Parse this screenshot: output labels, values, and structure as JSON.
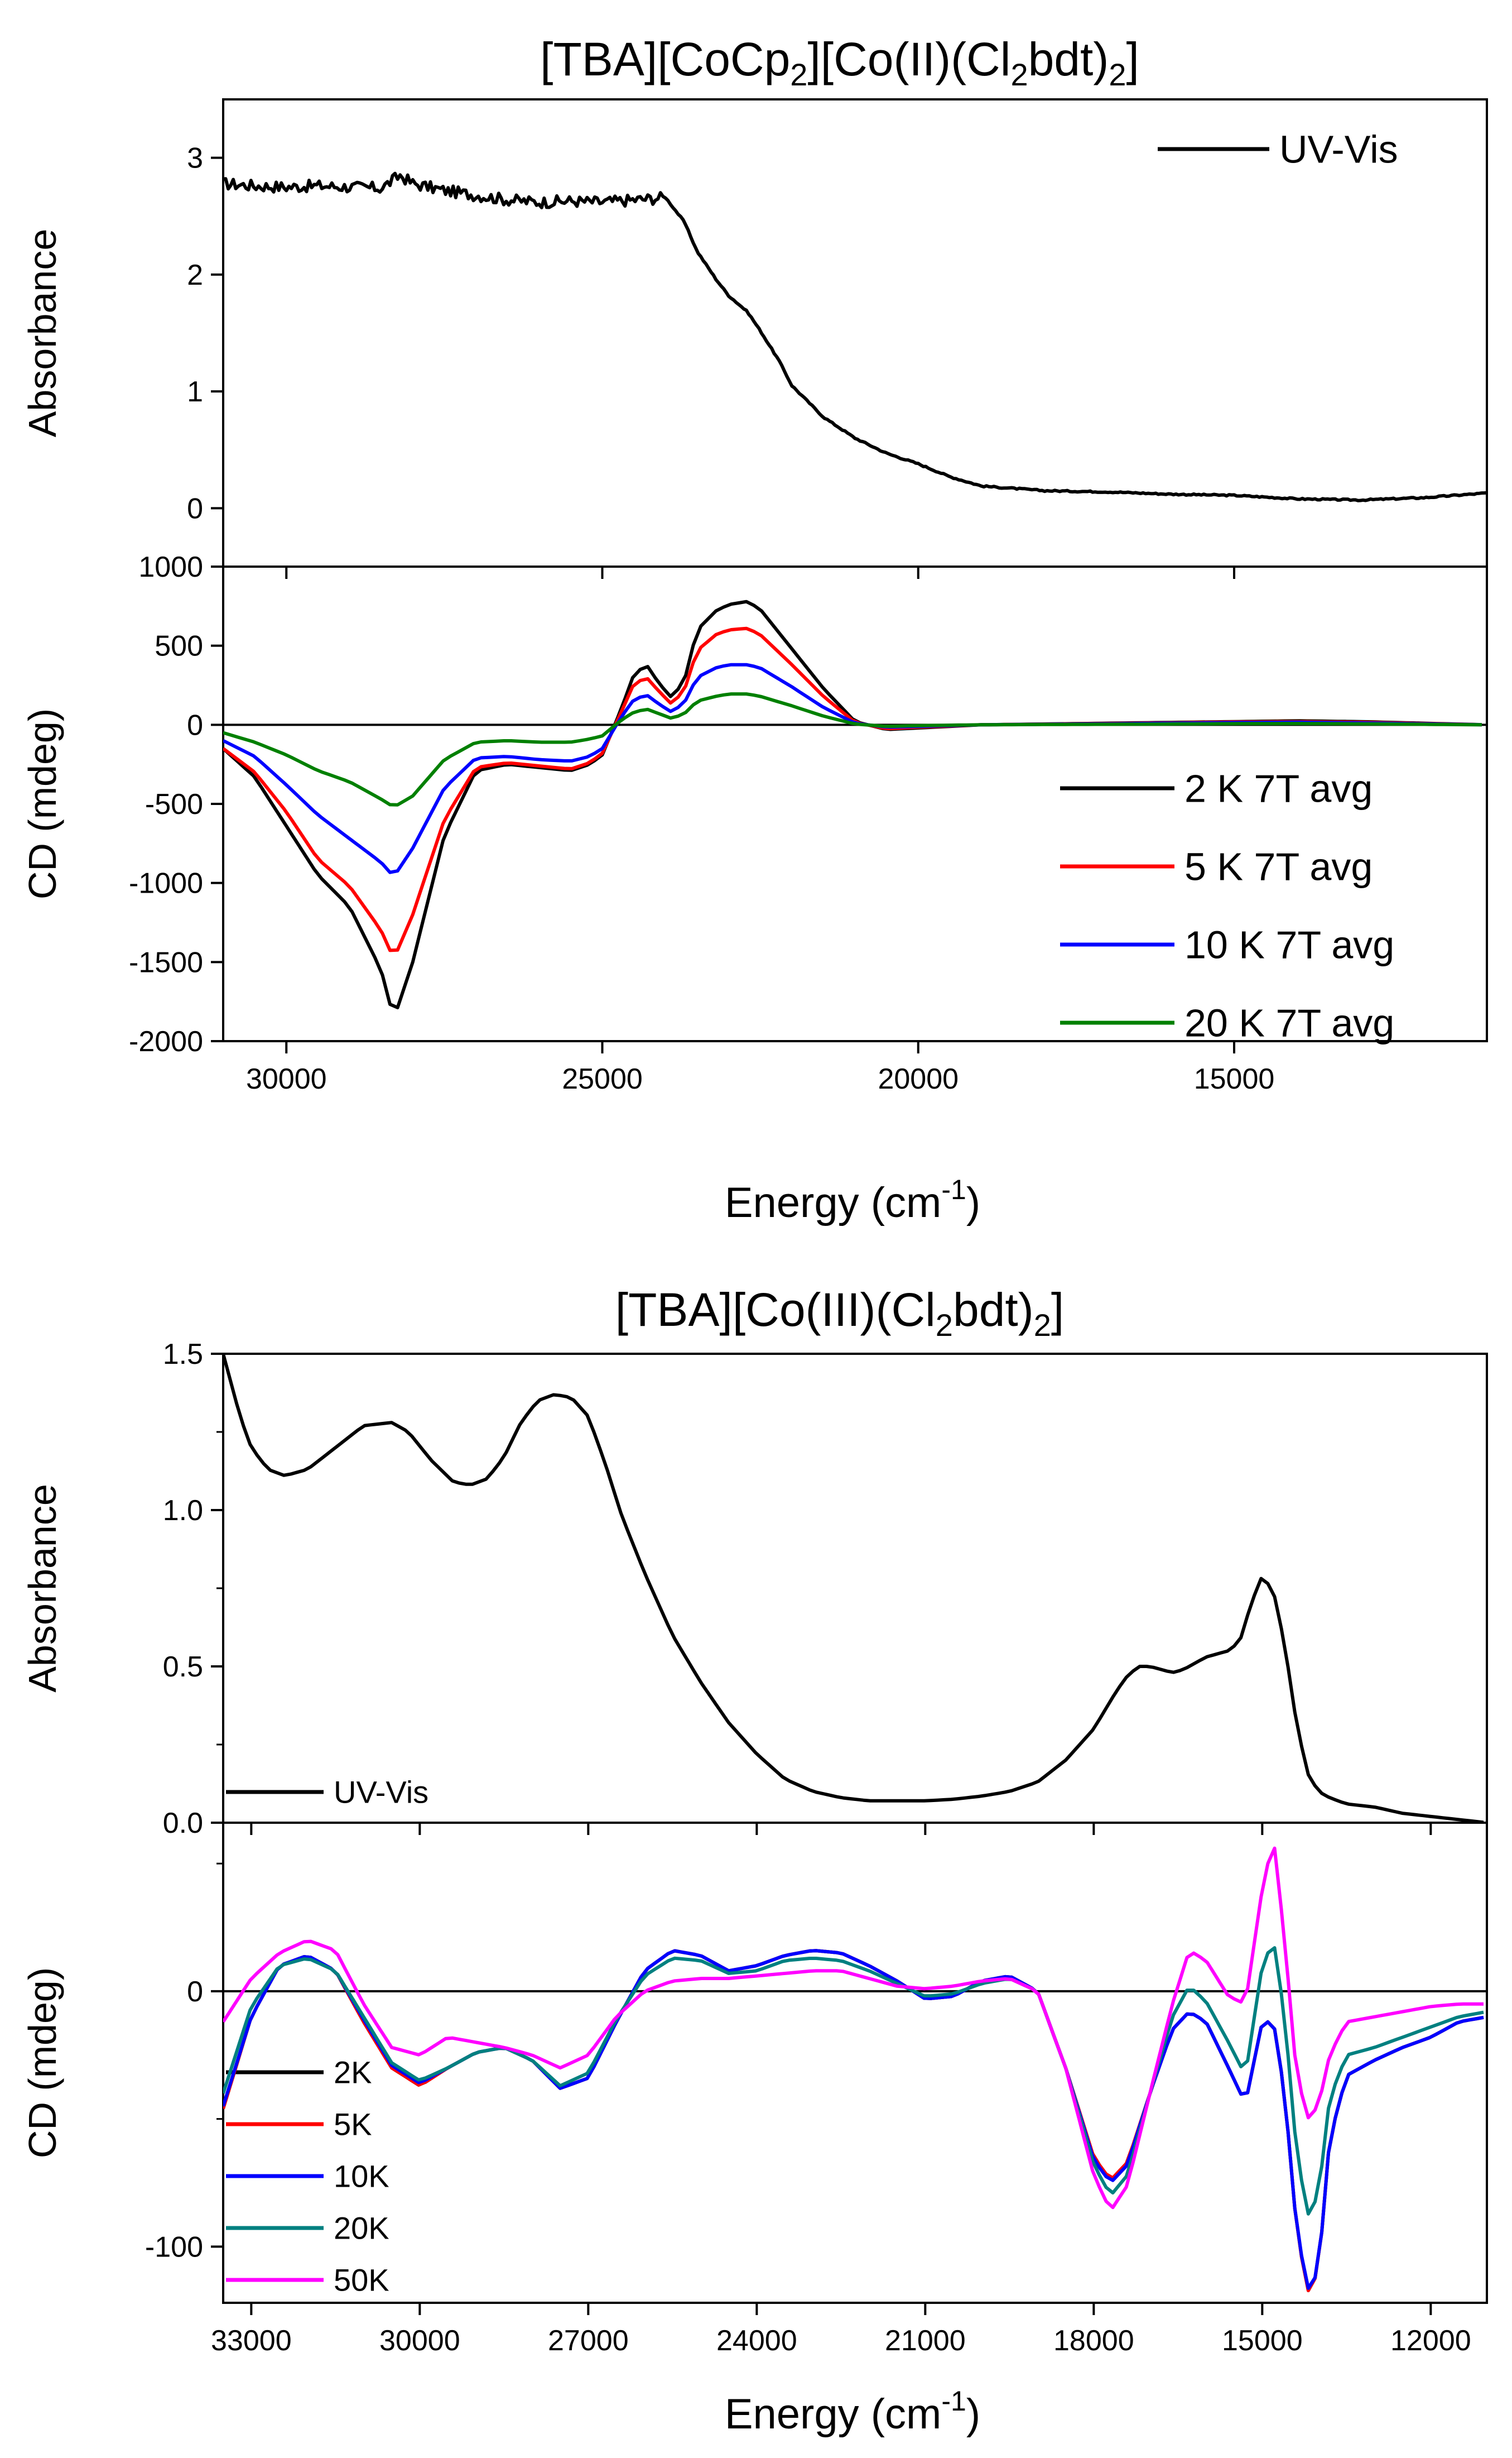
{
  "figure": {
    "top_title_main": "[TBA][CoCp",
    "top_title_sub1": "2",
    "top_title_mid": "][Co(II)(Cl",
    "top_title_sub2": "2",
    "top_title_end": "bdt)",
    "top_title_sub3": "2",
    "top_title_close": "]",
    "bottom_title_main": "[TBA][Co(III)(Cl",
    "bottom_title_sub1": "2",
    "bottom_title_mid": "bdt)",
    "bottom_title_sub2": "2",
    "bottom_title_close": "]",
    "xlabel_main": "Energy (cm",
    "xlabel_sup": "-1",
    "xlabel_close": ")"
  },
  "chart_data": [
    {
      "id": "top-abs",
      "type": "line",
      "ylabel": "Absorbance",
      "xlim": [
        31000,
        11000
      ],
      "ylim": [
        -0.5,
        3.5
      ],
      "yticks": [
        0,
        1,
        2,
        3
      ],
      "yticklabels": [
        "0",
        "1",
        "2",
        "3"
      ],
      "xticks": [
        30000,
        25000,
        20000,
        15000
      ],
      "xticklabels": [],
      "legend": "top-right",
      "series": [
        {
          "name": "UV-Vis",
          "color": "#000000",
          "noise": 0.1,
          "noise_until": 24000,
          "x": [
            31000,
            30500,
            30000,
            29500,
            29000,
            28500,
            28200,
            28000,
            27500,
            27000,
            26500,
            26000,
            25500,
            25000,
            24500,
            24000,
            23700,
            23500,
            23200,
            23000,
            22700,
            22500,
            22200,
            22000,
            21500,
            21000,
            20500,
            20000,
            19500,
            19000,
            18500,
            18000,
            17000,
            16000,
            15000,
            14000,
            13000,
            12000,
            11000
          ],
          "y": [
            2.78,
            2.76,
            2.75,
            2.76,
            2.75,
            2.74,
            2.85,
            2.78,
            2.72,
            2.68,
            2.64,
            2.62,
            2.63,
            2.62,
            2.64,
            2.66,
            2.45,
            2.2,
            1.96,
            1.82,
            1.68,
            1.52,
            1.26,
            1.05,
            0.78,
            0.6,
            0.47,
            0.38,
            0.27,
            0.19,
            0.17,
            0.15,
            0.14,
            0.12,
            0.11,
            0.08,
            0.07,
            0.09,
            0.13
          ]
        }
      ]
    },
    {
      "id": "top-cd",
      "type": "line",
      "ylabel": "CD (mdeg)",
      "xlim": [
        31000,
        11000
      ],
      "ylim": [
        -2000,
        1000
      ],
      "yticks": [
        -2000,
        -1500,
        -1000,
        -500,
        0,
        500,
        1000
      ],
      "yticklabels": [
        "-2000",
        "-1500",
        "-1000",
        "-500",
        "0",
        "500",
        "1000"
      ],
      "xticks": [
        30000,
        25000,
        20000,
        15000
      ],
      "xticklabels": [
        "30000",
        "25000",
        "20000",
        "15000"
      ],
      "legend": "bottom-right",
      "x": [
        31000,
        30500,
        30000,
        29500,
        29000,
        28500,
        28300,
        28000,
        27500,
        27000,
        26500,
        26000,
        25500,
        25200,
        25000,
        24700,
        24500,
        24300,
        24100,
        23900,
        23700,
        23500,
        23200,
        23000,
        22700,
        22500,
        22000,
        21500,
        21000,
        20500,
        20000,
        19000,
        18000,
        17000,
        16000,
        15000,
        14000,
        13000,
        12000,
        11000
      ],
      "series": [
        {
          "name": "2 K 7T avg",
          "color": "#000000",
          "y": [
            -150,
            -330,
            -640,
            -950,
            -1150,
            -1550,
            -1860,
            -1500,
            -700,
            -290,
            -250,
            -270,
            -290,
            -250,
            -190,
            100,
            320,
            380,
            260,
            170,
            280,
            600,
            720,
            760,
            780,
            730,
            480,
            230,
            20,
            -30,
            -20,
            0,
            5,
            10,
            15,
            20,
            25,
            20,
            10,
            0
          ]
        },
        {
          "name": "5 K 7T avg",
          "color": "#ff0000",
          "y": [
            -150,
            -300,
            -550,
            -850,
            -1020,
            -1300,
            -1480,
            -1200,
            -600,
            -270,
            -240,
            -260,
            -280,
            -240,
            -180,
            80,
            260,
            300,
            210,
            130,
            220,
            470,
            570,
            600,
            610,
            570,
            380,
            180,
            15,
            -25,
            -15,
            0,
            4,
            8,
            12,
            18,
            20,
            16,
            8,
            0
          ]
        },
        {
          "name": "10 K 7T avg",
          "color": "#0000ff",
          "y": [
            -100,
            -200,
            -380,
            -570,
            -720,
            -870,
            -960,
            -780,
            -400,
            -210,
            -200,
            -220,
            -230,
            -200,
            -150,
            50,
            160,
            190,
            130,
            80,
            140,
            300,
            360,
            380,
            380,
            360,
            240,
            110,
            10,
            -15,
            -10,
            0,
            3,
            6,
            10,
            14,
            16,
            12,
            6,
            0
          ]
        },
        {
          "name": "20 K 7T avg",
          "color": "#008000",
          "y": [
            -50,
            -110,
            -190,
            -290,
            -360,
            -470,
            -520,
            -450,
            -220,
            -110,
            -100,
            -110,
            -110,
            -90,
            -70,
            30,
            80,
            100,
            70,
            40,
            70,
            150,
            180,
            195,
            195,
            180,
            120,
            55,
            5,
            -10,
            -5,
            0,
            2,
            3,
            5,
            7,
            8,
            6,
            3,
            0
          ]
        }
      ]
    },
    {
      "id": "bottom-abs",
      "type": "line",
      "ylabel": "Absorbance",
      "xlim": [
        33500,
        11000
      ],
      "ylim": [
        0,
        1.5
      ],
      "yticks": [
        0,
        0.5,
        1.0,
        1.5
      ],
      "yticklabels": [
        "0.0",
        "0.5",
        "1.0",
        "1.5"
      ],
      "minor_yticks": [
        0.25,
        0.75,
        1.25
      ],
      "xticks": [
        33000,
        30000,
        27000,
        24000,
        21000,
        18000,
        15000,
        12000
      ],
      "xticklabels": [],
      "legend": "bottom-left",
      "series": [
        {
          "name": "UV-Vis",
          "color": "#000000",
          "x": [
            33500,
            33200,
            33000,
            32700,
            32400,
            32000,
            31500,
            31000,
            30500,
            30200,
            29800,
            29400,
            29100,
            28800,
            28500,
            28200,
            27900,
            27600,
            27300,
            27000,
            26700,
            26400,
            26000,
            25500,
            25000,
            24500,
            24000,
            23500,
            23000,
            22500,
            22000,
            21500,
            21000,
            20500,
            20000,
            19500,
            19000,
            18500,
            18000,
            17800,
            17600,
            17400,
            17200,
            17000,
            16800,
            16600,
            16400,
            16200,
            16000,
            15800,
            15600,
            15400,
            15200,
            15000,
            14800,
            14600,
            14400,
            14200,
            14000,
            13800,
            13500,
            13000,
            12500,
            12000,
            11500,
            11000
          ],
          "y": [
            1.5,
            1.3,
            1.2,
            1.13,
            1.11,
            1.13,
            1.2,
            1.27,
            1.28,
            1.25,
            1.16,
            1.09,
            1.08,
            1.1,
            1.17,
            1.28,
            1.35,
            1.37,
            1.36,
            1.3,
            1.15,
            0.98,
            0.8,
            0.6,
            0.45,
            0.32,
            0.22,
            0.14,
            0.1,
            0.08,
            0.07,
            0.07,
            0.07,
            0.075,
            0.085,
            0.1,
            0.13,
            0.2,
            0.3,
            0.36,
            0.42,
            0.47,
            0.5,
            0.5,
            0.49,
            0.48,
            0.49,
            0.51,
            0.53,
            0.54,
            0.55,
            0.58,
            0.7,
            0.79,
            0.74,
            0.57,
            0.33,
            0.16,
            0.1,
            0.08,
            0.06,
            0.05,
            0.03,
            0.02,
            0.01,
            0.0
          ]
        }
      ]
    },
    {
      "id": "bottom-cd",
      "type": "line",
      "ylabel": "CD (mdeg)",
      "xlim": [
        33500,
        11000
      ],
      "ylim": [
        -122,
        66
      ],
      "yticks": [
        -100,
        0
      ],
      "yticklabels": [
        "-100",
        "0"
      ],
      "minor_yticks": [
        -50,
        50
      ],
      "xticks": [
        33000,
        30000,
        27000,
        24000,
        21000,
        18000,
        15000,
        12000
      ],
      "xticklabels": [
        "33000",
        "30000",
        "27000",
        "24000",
        "21000",
        "18000",
        "15000",
        "12000"
      ],
      "legend": "bottom-left",
      "x": [
        33500,
        33000,
        32500,
        32000,
        31500,
        31000,
        30500,
        30000,
        29500,
        29000,
        28500,
        28000,
        27500,
        27000,
        26500,
        26000,
        25500,
        25000,
        24500,
        24000,
        23500,
        23000,
        22500,
        22000,
        21500,
        21000,
        20500,
        20000,
        19500,
        19000,
        18500,
        18000,
        17700,
        17400,
        17000,
        16600,
        16300,
        16000,
        15600,
        15300,
        15000,
        14800,
        14600,
        14400,
        14200,
        14000,
        13800,
        13500,
        13000,
        12500,
        12000,
        11500,
        11000
      ],
      "series": [
        {
          "name": "2K",
          "color": "#000000",
          "y": [
            -46,
            -10,
            10,
            14,
            8,
            -12,
            -30,
            -37,
            -30,
            -24,
            -22,
            -27,
            -38,
            -34,
            -12,
            8,
            16,
            14,
            8,
            10,
            14,
            16,
            15,
            10,
            4,
            -3,
            -2,
            4,
            6,
            0,
            -30,
            -65,
            -74,
            -68,
            -40,
            -15,
            -8,
            -12,
            -30,
            -44,
            -12,
            -12,
            -40,
            -90,
            -118,
            -110,
            -58,
            -33,
            -27,
            -22,
            -18,
            -12,
            -10
          ]
        },
        {
          "name": "5K",
          "color": "#ff0000",
          "y": [
            -46,
            -10,
            10,
            14,
            8,
            -12,
            -30,
            -37,
            -30,
            -24,
            -22,
            -27,
            -38,
            -34,
            -12,
            8,
            16,
            14,
            8,
            10,
            14,
            16,
            15,
            10,
            4,
            -3,
            -2,
            4,
            6,
            0,
            -30,
            -65,
            -74,
            -67,
            -40,
            -15,
            -8,
            -12,
            -30,
            -44,
            -12,
            -12,
            -40,
            -90,
            -118,
            -110,
            -58,
            -33,
            -27,
            -22,
            -18,
            -12,
            -10
          ]
        },
        {
          "name": "10K",
          "color": "#0000ff",
          "y": [
            -45,
            -10,
            10,
            14,
            8,
            -11,
            -29,
            -36,
            -30,
            -24,
            -22,
            -27,
            -38,
            -34,
            -12,
            8,
            16,
            14,
            8,
            10,
            14,
            16,
            15,
            10,
            4,
            -3,
            -2,
            4,
            6,
            0,
            -30,
            -66,
            -75,
            -68,
            -40,
            -15,
            -8,
            -12,
            -30,
            -44,
            -12,
            -12,
            -40,
            -90,
            -117,
            -110,
            -58,
            -33,
            -27,
            -22,
            -18,
            -12,
            -10
          ]
        },
        {
          "name": "20K",
          "color": "#008080",
          "y": [
            -40,
            -6,
            10,
            13,
            8,
            -10,
            -28,
            -35,
            -30,
            -24,
            -22,
            -27,
            -37,
            -32,
            -11,
            6,
            13,
            12,
            7,
            8,
            12,
            13,
            12,
            8,
            3,
            -2,
            -1,
            3,
            5,
            0,
            -30,
            -68,
            -80,
            -72,
            -40,
            -10,
            2,
            -4,
            -20,
            -33,
            10,
            20,
            -10,
            -60,
            -88,
            -80,
            -42,
            -25,
            -22,
            -18,
            -14,
            -10,
            -8
          ]
        },
        {
          "name": "50K",
          "color": "#ff00ff",
          "y": [
            -12,
            5,
            15,
            20,
            16,
            -5,
            -22,
            -25,
            -18,
            -20,
            -22,
            -25,
            -30,
            -25,
            -10,
            0,
            4,
            5,
            5,
            6,
            7,
            8,
            8,
            5,
            2,
            1,
            2,
            4,
            5,
            0,
            -30,
            -72,
            -86,
            -76,
            -40,
            -5,
            16,
            12,
            -2,
            -5,
            40,
            60,
            20,
            -30,
            -50,
            -45,
            -25,
            -12,
            -10,
            -8,
            -6,
            -5,
            -5
          ]
        }
      ]
    }
  ]
}
